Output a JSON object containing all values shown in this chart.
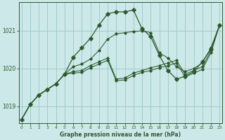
{
  "title": "Graphe pression niveau de la mer (hPa)",
  "background_color": "#cce8e8",
  "grid_color": "#a0cccc",
  "line_color": "#2d5a2d",
  "x_ticks": [
    0,
    1,
    2,
    3,
    4,
    5,
    6,
    7,
    8,
    9,
    10,
    11,
    12,
    13,
    14,
    15,
    16,
    17,
    18,
    19,
    20,
    21,
    22,
    23
  ],
  "y_ticks": [
    1019,
    1020,
    1021
  ],
  "ylim": [
    1018.55,
    1021.75
  ],
  "xlim": [
    -0.3,
    23.3
  ],
  "series_marked": [
    [
      1018.65,
      1019.05,
      1019.3,
      1019.45,
      1019.6,
      1019.85,
      1020.3,
      1020.55,
      1020.8,
      1021.15,
      1021.45,
      1021.5,
      1021.5,
      1021.55,
      1021.05,
      1020.85,
      1020.35,
      1019.95,
      1019.72,
      1019.8,
      1019.92,
      1020.18,
      1020.52,
      1021.15
    ]
  ],
  "series_flat": [
    [
      1018.65,
      1019.05,
      1019.3,
      1019.45,
      1019.6,
      1019.85,
      1019.92,
      1019.95,
      1020.08,
      1020.18,
      1020.28,
      1019.72,
      1019.75,
      1019.88,
      1019.95,
      1020.02,
      1020.08,
      1020.15,
      1020.22,
      1019.85,
      1019.95,
      1020.05,
      1020.48,
      1021.15
    ],
    [
      1018.65,
      1019.05,
      1019.3,
      1019.45,
      1019.6,
      1019.85,
      1019.88,
      1019.9,
      1020.02,
      1020.12,
      1020.22,
      1019.68,
      1019.7,
      1019.82,
      1019.9,
      1019.95,
      1020.02,
      1020.08,
      1020.15,
      1019.78,
      1019.88,
      1019.98,
      1020.42,
      1021.15
    ],
    [
      1018.65,
      1019.05,
      1019.3,
      1019.45,
      1019.6,
      1019.85,
      1020.05,
      1020.12,
      1020.25,
      1020.48,
      1020.78,
      1020.92,
      1020.95,
      1020.98,
      1021.0,
      1020.95,
      1020.42,
      1020.28,
      1020.05,
      1019.92,
      1020.0,
      1020.15,
      1020.55,
      1021.15
    ]
  ]
}
